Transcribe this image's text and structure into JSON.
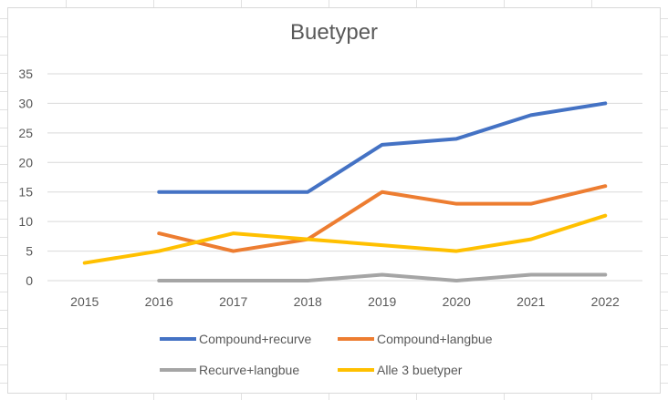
{
  "chart_data": {
    "type": "line",
    "title": "Buetyper",
    "xlabel": "",
    "ylabel": "",
    "categories": [
      "2015",
      "2016",
      "2017",
      "2018",
      "2019",
      "2020",
      "2021",
      "2022"
    ],
    "ylim": [
      0,
      35
    ],
    "yticks": [
      0,
      5,
      10,
      15,
      20,
      25,
      30,
      35
    ],
    "grid": true,
    "legend_position": "bottom",
    "series": [
      {
        "name": "Compound+recurve",
        "color": "#4472c4",
        "values": [
          null,
          15,
          15,
          15,
          23,
          24,
          28,
          30
        ]
      },
      {
        "name": "Compound+langbue",
        "color": "#ed7d31",
        "values": [
          null,
          8,
          5,
          7,
          15,
          13,
          13,
          16
        ]
      },
      {
        "name": "Recurve+langbue",
        "color": "#a5a5a5",
        "values": [
          null,
          0,
          0,
          0,
          1,
          0,
          1,
          1
        ]
      },
      {
        "name": "Alle 3 buetyper",
        "color": "#ffc000",
        "values": [
          3,
          5,
          8,
          7,
          6,
          5,
          7,
          11
        ]
      }
    ]
  }
}
